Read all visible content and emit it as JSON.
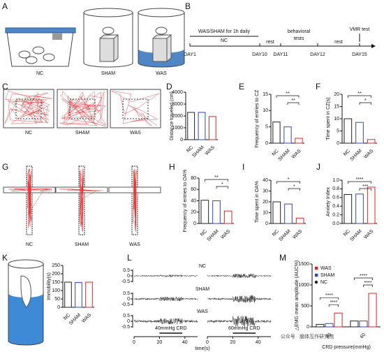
{
  "panel_letters": [
    "A",
    "B",
    "C",
    "D",
    "E",
    "F",
    "G",
    "H",
    "I",
    "J",
    "K",
    "L",
    "M"
  ],
  "panel_A": {
    "labels": [
      "NC",
      "SHAM",
      "WAS"
    ]
  },
  "panel_B": {
    "segments": [
      "WAS/SHAM for 1h daily",
      "NC",
      "rest",
      "behavioral",
      "tests",
      "rest",
      "VMR test"
    ],
    "days": [
      "DAY1",
      "DAY10",
      "DAY11",
      "DAY12",
      "DAY15"
    ]
  },
  "panel_C": {
    "labels": [
      "NC",
      "SHAM",
      "WAS"
    ]
  },
  "panel_G": {
    "labels": [
      "NC",
      "SHAM",
      "WAS"
    ]
  },
  "panel_L": {
    "traces": [
      "NC",
      "SHAM",
      "WAS"
    ],
    "yticks": [
      0.5,
      0,
      -0.5
    ],
    "xticks": [
      0,
      20,
      40
    ],
    "xlim": [
      0,
      50
    ],
    "xlabel": "time(s)",
    "stimuli": [
      "40mmHg CRD",
      "60mmHg CRD"
    ]
  },
  "chart_data": [
    {
      "type": "bar",
      "ylabel": "Distance traveled (cm)",
      "categories": [
        "NC",
        "SHAM",
        "WAS"
      ],
      "values": [
        2300,
        2300,
        1950
      ],
      "colors": [
        "#222222",
        "#2e46c9",
        "#d9262b"
      ],
      "ylim": [
        0,
        4000
      ],
      "yticks": [
        0,
        1000,
        2000,
        3000,
        4000
      ],
      "annotations": []
    },
    {
      "type": "bar",
      "ylabel": "Frequency of entries to CZ",
      "categories": [
        "NC",
        "SHAM",
        "WAS"
      ],
      "values": [
        6.5,
        5,
        1.5
      ],
      "colors": [
        "#222222",
        "#2e46c9",
        "#d9262b"
      ],
      "ylim": [
        0,
        15
      ],
      "yticks": [
        0,
        5,
        10,
        15
      ],
      "annotations": [
        "**",
        "**"
      ]
    },
    {
      "type": "bar",
      "ylabel": "Time spent in CZ(s)",
      "categories": [
        "NC",
        "SHAM",
        "WAS"
      ],
      "values": [
        10,
        8.5,
        1.5
      ],
      "colors": [
        "#222222",
        "#2e46c9",
        "#d9262b"
      ],
      "ylim": [
        0,
        20
      ],
      "yticks": [
        0,
        5,
        10,
        15,
        20
      ],
      "annotations": [
        "**",
        "*"
      ]
    },
    {
      "type": "bar",
      "ylabel": "Frequency of entries to OA%",
      "categories": [
        "NC",
        "SHAM",
        "WAS"
      ],
      "values": [
        41,
        40,
        22
      ],
      "colors": [
        "#222222",
        "#2e46c9",
        "#d9262b"
      ],
      "ylim": [
        0,
        80
      ],
      "yticks": [
        0,
        20,
        40,
        60,
        80
      ],
      "annotations": [
        "**",
        "*"
      ]
    },
    {
      "type": "bar",
      "ylabel": "Time spent in OA%",
      "categories": [
        "NC",
        "SHAM",
        "WAS"
      ],
      "values": [
        20,
        18,
        5
      ],
      "colors": [
        "#222222",
        "#2e46c9",
        "#d9262b"
      ],
      "ylim": [
        0,
        40
      ],
      "yticks": [
        0,
        10,
        20,
        30,
        40
      ],
      "annotations": [
        "*",
        "*"
      ]
    },
    {
      "type": "bar",
      "ylabel": "Anxiety Index",
      "categories": [
        "NC",
        "SHAM",
        "WAS"
      ],
      "values": [
        0.67,
        0.68,
        0.84
      ],
      "colors": [
        "#222222",
        "#2e46c9",
        "#d9262b"
      ],
      "ylim": [
        0,
        1
      ],
      "yticks": [
        {
          "value": 0,
          "label": "0.0"
        },
        0.2,
        0.4,
        0.6,
        0.8,
        {
          "value": 1,
          "label": "1.0"
        }
      ],
      "annotations": [
        "****",
        "***"
      ]
    },
    {
      "type": "bar",
      "ylabel": "Immobility(s)",
      "categories": [
        "NC",
        "SHAM",
        "WAS"
      ],
      "values": [
        150,
        148,
        150
      ],
      "colors": [
        "#222222",
        "#2e46c9",
        "#d9262b"
      ],
      "ylim": [
        0,
        250
      ],
      "yticks": [
        0,
        50,
        100,
        150,
        200,
        250
      ],
      "annotations": []
    },
    {
      "type": "grouped-bar",
      "ylabel": "△EMG mean amplitude (AUC%)",
      "xlabel": "CRD pressure(mmHg)",
      "categories": [
        "40",
        "60"
      ],
      "series": [
        {
          "name": "WAS",
          "color": "#d9262b",
          "values": [
            330,
            800
          ]
        },
        {
          "name": "SHAM",
          "color": "#2e46c9",
          "values": [
            80,
            140
          ]
        },
        {
          "name": "NC",
          "color": "#222222",
          "values": [
            60,
            140
          ]
        }
      ],
      "ylim": [
        0,
        1500
      ],
      "yticks": [
        0,
        500,
        1000,
        1500
      ],
      "annotations": [
        "****",
        "****",
        "****",
        "****"
      ]
    }
  ],
  "watermark": "公众号 · 脑体互作研究院"
}
